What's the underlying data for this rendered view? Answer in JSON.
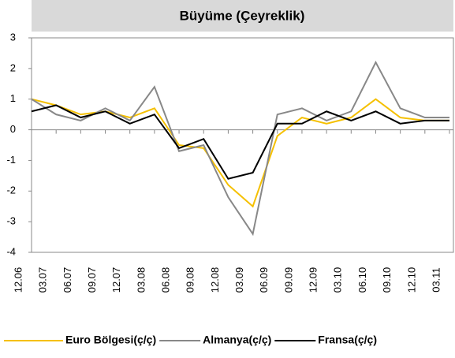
{
  "chart_data": {
    "type": "line",
    "title": "Büyüme (Çeyreklik)",
    "categories": [
      "12.06",
      "03.07",
      "06.07",
      "09.07",
      "12.07",
      "03.08",
      "06.08",
      "09.08",
      "12.08",
      "03.09",
      "06.09",
      "09.09",
      "12.09",
      "03.10",
      "06.10",
      "09.10",
      "12.10",
      "03.11"
    ],
    "series": [
      {
        "name": "Euro Bölgesi(ç/ç)",
        "color": "#f5c000",
        "values": [
          1.0,
          0.8,
          0.5,
          0.6,
          0.4,
          0.7,
          -0.5,
          -0.6,
          -1.8,
          -2.5,
          -0.2,
          0.4,
          0.2,
          0.4,
          1.0,
          0.4,
          0.3,
          0.3
        ]
      },
      {
        "name": "Almanya(ç/ç)",
        "color": "#888888",
        "values": [
          1.0,
          0.5,
          0.3,
          0.7,
          0.3,
          1.4,
          -0.7,
          -0.5,
          -2.2,
          -3.4,
          0.5,
          0.7,
          0.3,
          0.6,
          2.2,
          0.7,
          0.4,
          0.4
        ]
      },
      {
        "name": "Fransa(ç/ç)",
        "color": "#000000",
        "values": [
          0.6,
          0.8,
          0.4,
          0.6,
          0.2,
          0.5,
          -0.6,
          -0.3,
          -1.6,
          -1.4,
          0.2,
          0.2,
          0.6,
          0.3,
          0.6,
          0.2,
          0.3,
          0.3
        ]
      }
    ],
    "ylim": [
      -4,
      3
    ],
    "yticks": [
      -4,
      -3,
      -2,
      -1,
      0,
      1,
      2,
      3
    ],
    "grid": false
  }
}
